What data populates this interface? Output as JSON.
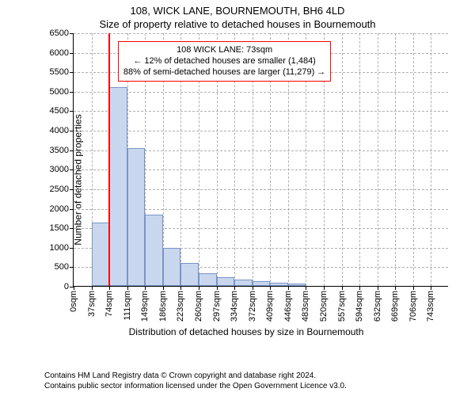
{
  "title": "108, WICK LANE, BOURNEMOUTH, BH6 4LD",
  "subtitle": "Size of property relative to detached houses in Bournemouth",
  "chart": {
    "type": "histogram",
    "ylabel": "Number of detached properties",
    "xlabel": "Distribution of detached houses by size in Bournemouth",
    "ylim": [
      0,
      6500
    ],
    "ytick_step": 500,
    "yticks": [
      0,
      500,
      1000,
      1500,
      2000,
      2500,
      3000,
      3500,
      4000,
      4500,
      5000,
      5500,
      6000,
      6500
    ],
    "xlim_sqm": [
      0,
      780
    ],
    "xtick_step_sqm": 37,
    "xtick_labels": [
      "0sqm",
      "37sqm",
      "74sqm",
      "111sqm",
      "149sqm",
      "186sqm",
      "223sqm",
      "260sqm",
      "297sqm",
      "334sqm",
      "372sqm",
      "409sqm",
      "446sqm",
      "483sqm",
      "520sqm",
      "557sqm",
      "594sqm",
      "632sqm",
      "669sqm",
      "706sqm",
      "743sqm"
    ],
    "bar_values": [
      0,
      1620,
      5100,
      3530,
      1820,
      970,
      590,
      320,
      230,
      160,
      120,
      80,
      60,
      0,
      0,
      0,
      0,
      0,
      0,
      0,
      0
    ],
    "bar_fill": "#c9d7ee",
    "bar_stroke": "#7a94c8",
    "bar_width_ratio": 1.0,
    "grid_color": "#b0b0b0",
    "axis_color": "#000000",
    "marker": {
      "sqm": 73,
      "color": "#ff0000"
    },
    "annotation": {
      "lines": [
        "108 WICK LANE: 73sqm",
        "← 12% of detached houses are smaller (1,484)",
        "88% of semi-detached houses are larger (11,279) →"
      ],
      "border_color": "#ff0000",
      "left_sqm": 92,
      "top_value": 6300
    },
    "label_fontsize": 12,
    "tick_fontsize": 11
  },
  "footer": {
    "line1": "Contains HM Land Registry data © Crown copyright and database right 2024.",
    "line2": "Contains public sector information licensed under the Open Government Licence v3.0."
  }
}
